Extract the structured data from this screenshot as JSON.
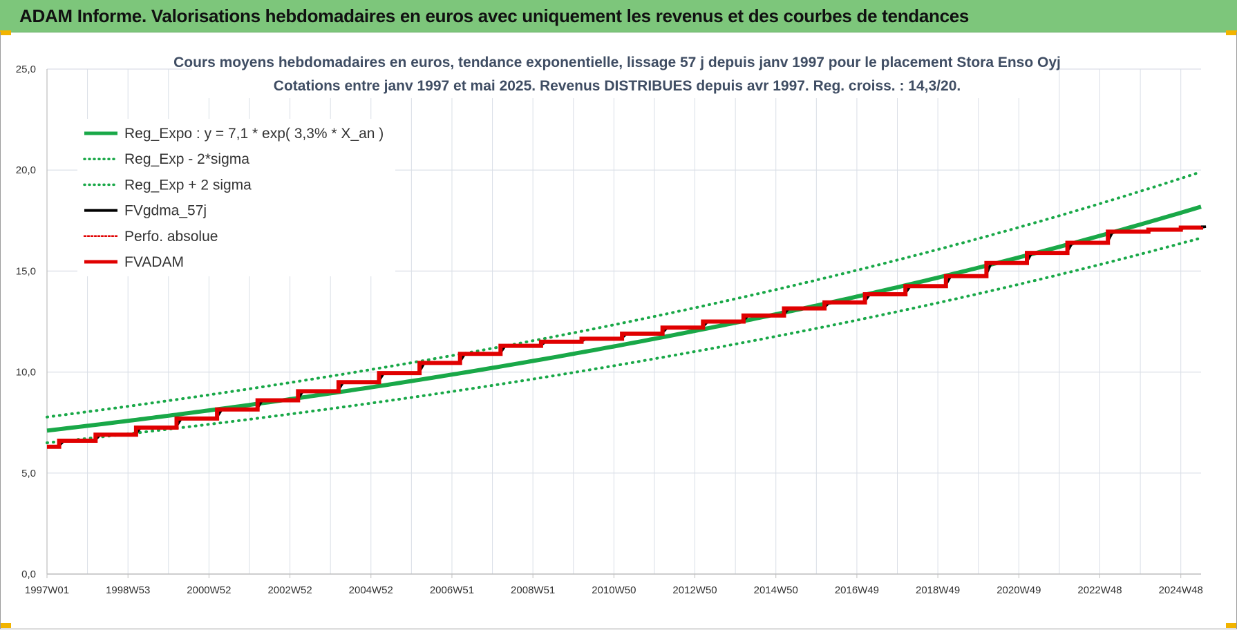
{
  "header": {
    "title": "ADAM Informe. Valorisations hebdomadaires en euros avec uniquement les revenus et des courbes de tendances",
    "background_color": "#7dc67b"
  },
  "chart_data": {
    "type": "line",
    "title_lines": [
      "Cours moyens hebdomadaires en euros, tendance exponentielle, lissage 57 j depuis janv 1997 pour le placement Stora Enso Oyj",
      "Cotations entre janv 1997 et mai 2025. Revenus DISTRIBUES depuis avr 1997. Reg. croiss. : 14,3/20."
    ],
    "x_tick_labels": [
      "1997W01",
      "1998W53",
      "2000W52",
      "2002W52",
      "2004W52",
      "2006W51",
      "2008W51",
      "2010W50",
      "2012W50",
      "2014W50",
      "2016W49",
      "2018W49",
      "2020W49",
      "2022W48",
      "2024W48"
    ],
    "x_tick_years": [
      1997.0,
      1999.0,
      2001.0,
      2003.0,
      2005.0,
      2007.0,
      2009.0,
      2011.0,
      2013.0,
      2015.0,
      2017.0,
      2019.0,
      2021.0,
      2023.0,
      2025.0
    ],
    "x_range": [
      1997.0,
      2025.5
    ],
    "ylim": [
      0,
      25
    ],
    "y_ticks": [
      "0,0",
      "5,0",
      "10,0",
      "15,0",
      "20,0",
      "25,0"
    ],
    "y_tick_values": [
      0,
      5,
      10,
      15,
      20,
      25
    ],
    "grid": true,
    "legend_position": "top-left",
    "legend": [
      {
        "label": "Reg_Expo : y = 7,1 * exp( 3,3% *  X_an )",
        "color": "#19a848",
        "style": "solid-thick"
      },
      {
        "label": "Reg_Exp - 2*sigma",
        "color": "#19a848",
        "style": "dotted"
      },
      {
        "label": "Reg_Exp + 2 sigma",
        "color": "#19a848",
        "style": "dotted"
      },
      {
        "label": "FVgdma_57j",
        "color": "#000000",
        "style": "solid"
      },
      {
        "label": "Perfo. absolue",
        "color": "#e00000",
        "style": "dotted"
      },
      {
        "label": "FVADAM",
        "color": "#e00000",
        "style": "solid-thick"
      }
    ],
    "regression": {
      "a": 7.1,
      "rate": 0.033,
      "lower_factor": 0.915,
      "upper_factor": 1.095
    },
    "fvadam_steps": [
      {
        "x": 1997.0,
        "y": 6.3
      },
      {
        "x": 1997.3,
        "y": 6.6
      },
      {
        "x": 1998.2,
        "y": 6.9
      },
      {
        "x": 1999.2,
        "y": 7.25
      },
      {
        "x": 2000.2,
        "y": 7.7
      },
      {
        "x": 2001.2,
        "y": 8.15
      },
      {
        "x": 2002.2,
        "y": 8.6
      },
      {
        "x": 2003.2,
        "y": 9.05
      },
      {
        "x": 2004.2,
        "y": 9.5
      },
      {
        "x": 2005.2,
        "y": 9.95
      },
      {
        "x": 2006.2,
        "y": 10.45
      },
      {
        "x": 2007.2,
        "y": 10.9
      },
      {
        "x": 2008.2,
        "y": 11.3
      },
      {
        "x": 2009.2,
        "y": 11.5
      },
      {
        "x": 2010.2,
        "y": 11.65
      },
      {
        "x": 2011.2,
        "y": 11.9
      },
      {
        "x": 2012.2,
        "y": 12.2
      },
      {
        "x": 2013.2,
        "y": 12.5
      },
      {
        "x": 2014.2,
        "y": 12.8
      },
      {
        "x": 2015.2,
        "y": 13.15
      },
      {
        "x": 2016.2,
        "y": 13.45
      },
      {
        "x": 2017.2,
        "y": 13.85
      },
      {
        "x": 2018.2,
        "y": 14.25
      },
      {
        "x": 2019.2,
        "y": 14.75
      },
      {
        "x": 2020.2,
        "y": 15.4
      },
      {
        "x": 2021.2,
        "y": 15.9
      },
      {
        "x": 2022.2,
        "y": 16.4
      },
      {
        "x": 2023.2,
        "y": 16.95
      },
      {
        "x": 2024.2,
        "y": 17.05
      },
      {
        "x": 2025.0,
        "y": 17.15
      },
      {
        "x": 2025.5,
        "y": 17.2
      }
    ],
    "colors": {
      "green": "#19a848",
      "black": "#000000",
      "red": "#e00000",
      "grid": "#d9dee6"
    }
  }
}
